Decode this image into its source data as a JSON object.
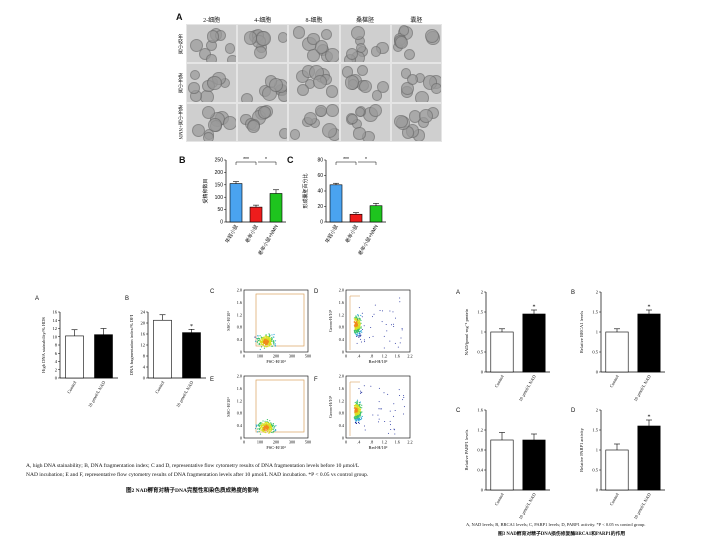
{
  "figure1": {
    "panel_a_label": "A",
    "col_headers": [
      "2-细胞",
      "4-细胞",
      "8-细胞",
      "桑椹胚",
      "囊胚"
    ],
    "row_headers": [
      "年轻小鼠",
      "老年小鼠",
      "老年小鼠+NMN"
    ],
    "panel_b_label": "B",
    "panel_c_label": "C"
  },
  "figure2": {
    "panel_labels": [
      "A",
      "B",
      "C",
      "D",
      "E",
      "F"
    ],
    "caption_line1": "A, high DNA stainability; B, DNA fragmentation index; C and D, representative flow cytometry results of DNA fragmentation levels before 10 μmol/L",
    "caption_line2": "NAD incubation; E and F, representative flow cytometry results of DNA fragmentation levels after 10 μmol/L NAD incubation. *P < 0.05 vs control group.",
    "title": "图2   NAD孵育对精子DNA完整性和染色质成熟度的影响",
    "flow_xlabel_left": "FSC-H/10³",
    "flow_ylabel_left": "SSC-H/10³",
    "flow_xlabel_right": "Red-H/10³",
    "flow_ylabel_right": "Green-H/10³",
    "flow_left_xticks": [
      "0",
      "100",
      "200",
      "300",
      "500"
    ],
    "flow_left_yticks": [
      "0",
      "0.4",
      "0.8",
      "1.2",
      "1.6",
      "2.0"
    ],
    "flow_right_xticks": [
      "0",
      ".4",
      ".8",
      "1.2",
      "1.6",
      "2.2"
    ],
    "flow_right_yticks": [
      "0",
      "0.4",
      "0.8",
      "1.2",
      "1.6",
      "2.0"
    ]
  },
  "figure3": {
    "panel_labels": [
      "A",
      "B",
      "C",
      "D"
    ],
    "caption": "A, NAD levels; B, BRCA1 levels; C, PARP1 levels; D, PARP1 activity. *P < 0.05 vs control group.",
    "title": "图3   NAD孵育对精子DNA损伤修复酶BRCA1和PARP1的作用"
  },
  "chart_data": [
    {
      "id": "fig1B",
      "type": "bar",
      "categories": [
        "年轻小鼠",
        "老年小鼠",
        "老年小鼠+NMN"
      ],
      "values": [
        155,
        60,
        115
      ],
      "errors": [
        8,
        8,
        15
      ],
      "colors": [
        "#4aa3f0",
        "#ee1c1c",
        "#1ec41e"
      ],
      "ylabel": "受精卵数目",
      "ylim": [
        0,
        250
      ],
      "yticks": [
        0,
        50,
        100,
        150,
        200,
        250
      ],
      "annotations": [
        "***",
        "*"
      ]
    },
    {
      "id": "fig1C",
      "type": "bar",
      "categories": [
        "年轻小鼠",
        "老年小鼠",
        "老年小鼠+NMN"
      ],
      "values": [
        48,
        10,
        21
      ],
      "errors": [
        2,
        2,
        3
      ],
      "colors": [
        "#4aa3f0",
        "#ee1c1c",
        "#1ec41e"
      ],
      "ylabel": "形成囊胚百分比",
      "ylim": [
        0,
        80
      ],
      "yticks": [
        0,
        20,
        40,
        60,
        80
      ],
      "annotations": [
        "***",
        "*"
      ]
    },
    {
      "id": "fig2A",
      "type": "bar",
      "categories": [
        "Control",
        "10 μmol/L NAD"
      ],
      "values": [
        10.2,
        10.5
      ],
      "errors": [
        1.5,
        1.5
      ],
      "colors": [
        "#ffffff",
        "#000000"
      ],
      "ylabel": "High DNA stainability/% HDS",
      "ylim": [
        0,
        16
      ],
      "yticks": [
        0,
        2,
        4,
        6,
        8,
        10,
        12,
        14,
        16
      ]
    },
    {
      "id": "fig2B",
      "type": "bar",
      "categories": [
        "Control",
        "10 μmol/L NAD"
      ],
      "values": [
        21,
        16.5
      ],
      "errors": [
        2,
        1.2
      ],
      "colors": [
        "#ffffff",
        "#000000"
      ],
      "ylabel": "DNA fragmentation index/% DFI",
      "ylim": [
        0,
        24
      ],
      "yticks": [
        0,
        4,
        8,
        12,
        16,
        20,
        24
      ],
      "annotations": [
        "*"
      ]
    },
    {
      "id": "fig3A",
      "type": "bar",
      "categories": [
        "Control",
        "10 μmol/L NAD"
      ],
      "values": [
        1.0,
        1.45
      ],
      "errors": [
        0.08,
        0.1
      ],
      "colors": [
        "#ffffff",
        "#000000"
      ],
      "ylabel": "NAD/(pmol·mg⁻¹ protein",
      "ylim": [
        0,
        2.0
      ],
      "yticks": [
        0,
        0.5,
        1.0,
        1.5,
        2.0
      ],
      "annotations": [
        "*"
      ]
    },
    {
      "id": "fig3B",
      "type": "bar",
      "categories": [
        "Control",
        "10 μmol/L NAD"
      ],
      "values": [
        1.0,
        1.45
      ],
      "errors": [
        0.08,
        0.1
      ],
      "colors": [
        "#ffffff",
        "#000000"
      ],
      "ylabel": "Relative BRCA1 levels",
      "ylim": [
        0,
        2.0
      ],
      "yticks": [
        0,
        0.5,
        1.0,
        1.5,
        2.0
      ],
      "annotations": [
        "*"
      ]
    },
    {
      "id": "fig3C",
      "type": "bar",
      "categories": [
        "Control",
        "10 μmol/L NAD"
      ],
      "values": [
        1.0,
        1.0
      ],
      "errors": [
        0.15,
        0.12
      ],
      "colors": [
        "#ffffff",
        "#000000"
      ],
      "ylabel": "Relative PARP1 levels",
      "ylim": [
        0,
        1.6
      ],
      "yticks": [
        0,
        0.4,
        0.8,
        1.2,
        1.6
      ]
    },
    {
      "id": "fig3D",
      "type": "bar",
      "categories": [
        "Control",
        "10 μmol/L NAD"
      ],
      "values": [
        1.0,
        1.6
      ],
      "errors": [
        0.15,
        0.15
      ],
      "colors": [
        "#ffffff",
        "#000000"
      ],
      "ylabel": "Relative PARP1 activity",
      "ylim": [
        0,
        2.0
      ],
      "yticks": [
        0,
        0.5,
        1.0,
        1.5,
        2.0
      ],
      "annotations": [
        "*"
      ]
    }
  ]
}
